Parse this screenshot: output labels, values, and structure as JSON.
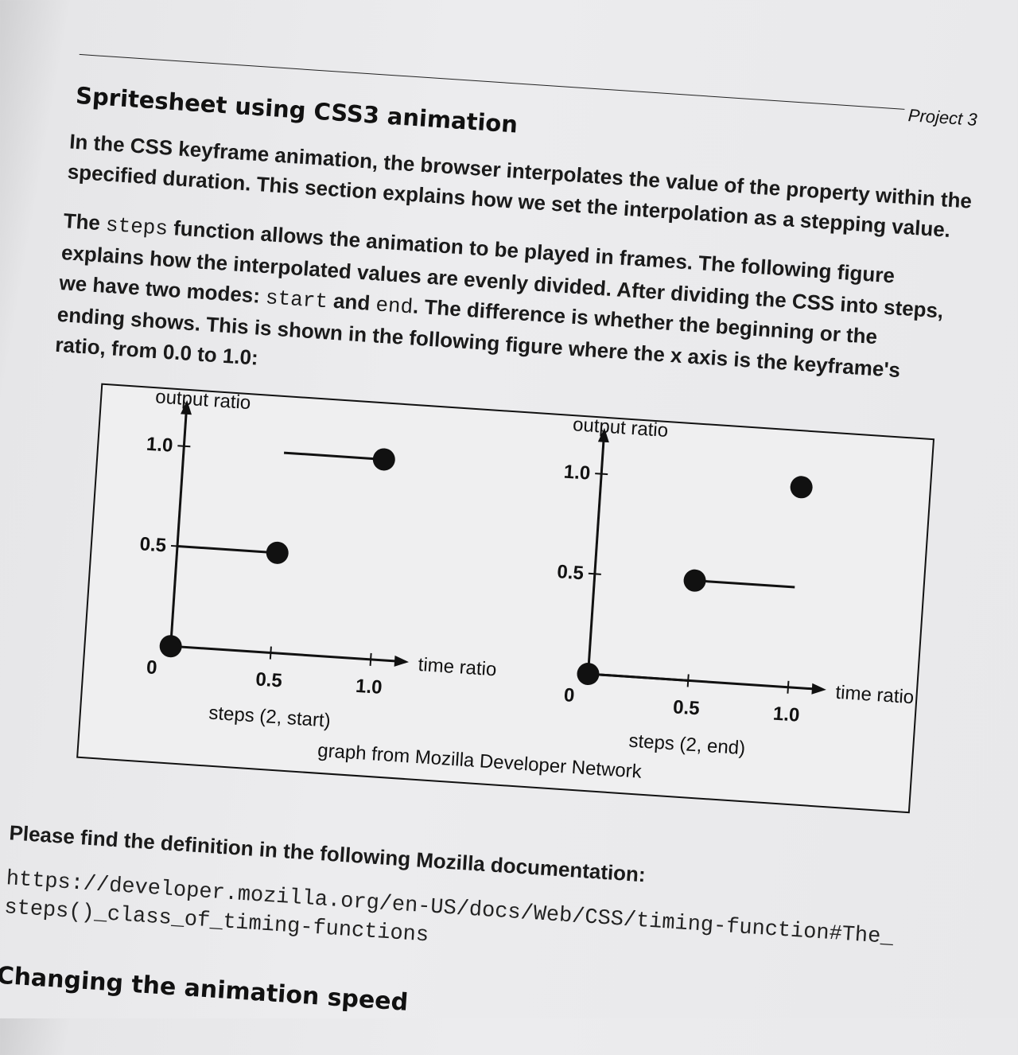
{
  "header": {
    "running_head": "Project 3"
  },
  "section_title": "Spritesheet using CSS3 animation",
  "paragraph1": {
    "lines": [
      "In the CSS keyframe animation, the browser interpolates the value of the property within the",
      "specified duration. This section explains how we set the interpolation as a stepping value."
    ]
  },
  "paragraph2": {
    "l1_a": "The ",
    "l1_code": "steps",
    "l1_b": " function allows the animation to be played in frames. The following figure",
    "l2": "explains how the interpolated values are evenly divided. After dividing the CSS into steps,",
    "l3_a": "we have two modes: ",
    "l3_code1": "start",
    "l3_b": " and ",
    "l3_code2": "end",
    "l3_c": ". The difference is whether the beginning or the",
    "l4": "ending shows. This is shown in the following figure where the x axis is the keyframe's",
    "l5": "ratio, from 0.0 to 1.0:"
  },
  "figure": {
    "caption": "graph from Mozilla Developer Network",
    "plots": [
      {
        "title": "steps (2, start)",
        "ylabel": "output ratio",
        "xlabel": "time ratio",
        "xticks": [
          "0.5",
          "1.0"
        ],
        "yticks": [
          "0.5",
          "1.0"
        ],
        "origin_label": "0",
        "segments": [
          [
            0.0,
            0.5,
            0.5
          ],
          [
            0.5,
            1.0,
            1.0
          ]
        ],
        "dots": [
          [
            0,
            0
          ],
          [
            0.5,
            0.5
          ],
          [
            1.0,
            1.0
          ]
        ]
      },
      {
        "title": "steps (2, end)",
        "ylabel": "output ratio",
        "xlabel": "time ratio",
        "xticks": [
          "0.5",
          "1.0"
        ],
        "yticks": [
          "0.5",
          "1.0"
        ],
        "origin_label": "0",
        "segments": [
          [
            0.0,
            0.5,
            0.0
          ],
          [
            0.5,
            1.0,
            0.5
          ]
        ],
        "dots": [
          [
            0,
            0
          ],
          [
            0.5,
            0.5
          ],
          [
            1.0,
            1.0
          ]
        ]
      }
    ]
  },
  "paragraph3": "Please find the definition in the following Mozilla documentation:",
  "url": {
    "line1": "https://developer.mozilla.org/en-US/docs/Web/CSS/timing-function#The_",
    "line2": "steps()_class_of_timing-functions"
  },
  "next_section_title": "Changing the animation speed"
}
